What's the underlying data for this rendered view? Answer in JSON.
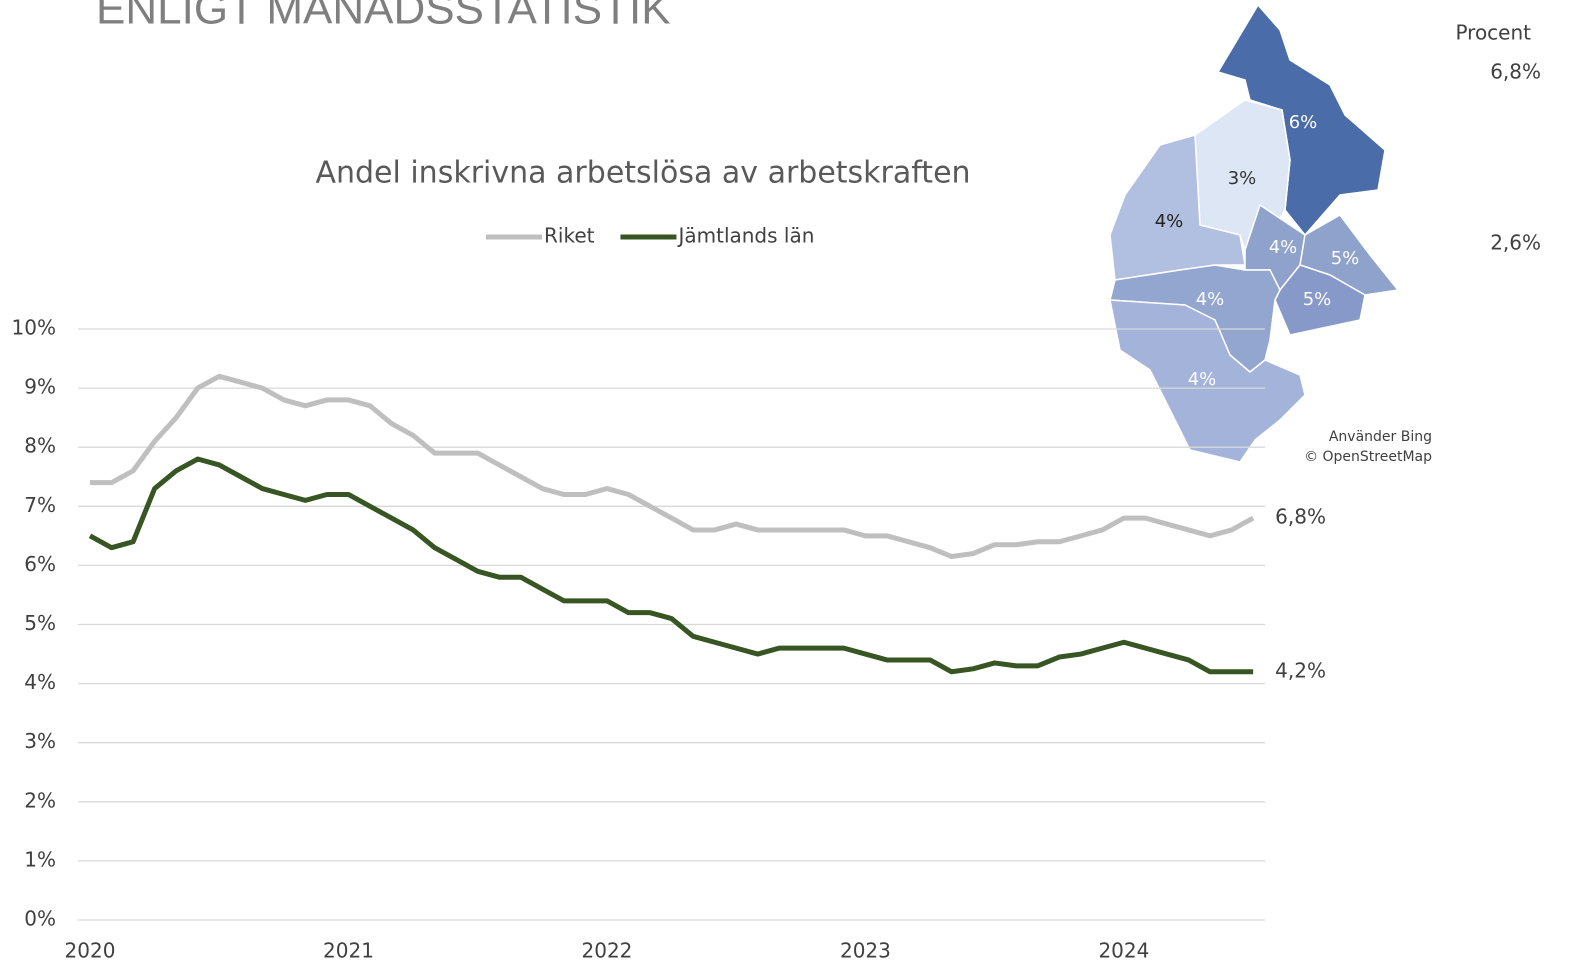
{
  "slide_title": "ENLIGT MÅNADSSTATISTIK",
  "chart_data": {
    "type": "line",
    "title": "Andel inskrivna arbetslösa av arbetskraften",
    "categories": [
      "2020",
      null,
      null,
      null,
      null,
      null,
      null,
      null,
      null,
      null,
      null,
      null,
      "2021",
      null,
      null,
      null,
      null,
      null,
      null,
      null,
      null,
      null,
      null,
      null,
      "2022",
      null,
      null,
      null,
      null,
      null,
      null,
      null,
      null,
      null,
      null,
      null,
      "2023",
      null,
      null,
      null,
      null,
      null,
      null,
      null,
      null,
      null,
      null,
      null,
      "2024",
      null,
      null,
      null,
      null,
      null,
      null
    ],
    "series": [
      {
        "name": "Riket",
        "color": "#bfbfbf",
        "values": [
          7.4,
          7.4,
          7.6,
          8.1,
          8.5,
          9.0,
          9.2,
          9.1,
          9.0,
          8.8,
          8.7,
          8.8,
          8.8,
          8.7,
          8.4,
          8.2,
          7.9,
          7.9,
          7.9,
          7.7,
          7.5,
          7.3,
          7.2,
          7.2,
          7.3,
          7.2,
          7.0,
          6.8,
          6.6,
          6.6,
          6.7,
          6.6,
          6.6,
          6.6,
          6.6,
          6.6,
          6.5,
          6.5,
          6.4,
          6.3,
          6.15,
          6.2,
          6.35,
          6.35,
          6.4,
          6.4,
          6.5,
          6.6,
          6.8,
          6.8,
          6.7,
          6.6,
          6.5,
          6.6,
          6.8
        ],
        "value_labels": [
          null,
          null,
          null,
          null,
          null,
          null,
          null,
          null,
          null,
          null,
          null,
          null,
          null,
          null,
          null,
          null,
          null,
          null,
          null,
          null,
          null,
          null,
          null,
          null,
          null,
          null,
          null,
          null,
          null,
          null,
          null,
          null,
          null,
          null,
          null,
          null,
          null,
          null,
          null,
          null,
          null,
          null,
          null,
          null,
          null,
          null,
          null,
          null,
          null,
          null,
          null,
          null,
          null,
          null,
          "6,8%"
        ]
      },
      {
        "name": "Jämtlands län",
        "color": "#375623",
        "values": [
          6.5,
          6.3,
          6.4,
          7.3,
          7.6,
          7.8,
          7.7,
          7.5,
          7.3,
          7.2,
          7.1,
          7.2,
          7.2,
          7.0,
          6.8,
          6.6,
          6.3,
          6.1,
          5.9,
          5.8,
          5.8,
          5.6,
          5.4,
          5.4,
          5.4,
          5.2,
          5.2,
          5.1,
          4.8,
          4.7,
          4.6,
          4.5,
          4.6,
          4.6,
          4.6,
          4.6,
          4.5,
          4.4,
          4.4,
          4.4,
          4.2,
          4.25,
          4.35,
          4.3,
          4.3,
          4.45,
          4.5,
          4.6,
          4.7,
          4.6,
          4.5,
          4.4,
          4.2,
          4.2,
          4.2
        ],
        "value_labels": [
          null,
          null,
          null,
          null,
          null,
          null,
          null,
          null,
          null,
          null,
          null,
          null,
          null,
          null,
          null,
          null,
          null,
          null,
          null,
          null,
          null,
          null,
          null,
          null,
          null,
          null,
          null,
          null,
          null,
          null,
          null,
          null,
          null,
          null,
          null,
          null,
          null,
          null,
          null,
          null,
          null,
          null,
          null,
          null,
          null,
          null,
          null,
          null,
          null,
          null,
          null,
          null,
          null,
          null,
          "4,2%"
        ]
      }
    ],
    "ylim": [
      0,
      10
    ],
    "yticks": [
      {
        "value": 0,
        "label": "0%"
      },
      {
        "value": 1,
        "label": "1%"
      },
      {
        "value": 2,
        "label": "2%"
      },
      {
        "value": 3,
        "label": "3%"
      },
      {
        "value": 4,
        "label": "4%"
      },
      {
        "value": 5,
        "label": "5%"
      },
      {
        "value": 6,
        "label": "6%"
      },
      {
        "value": 7,
        "label": "7%"
      },
      {
        "value": 8,
        "label": "8%"
      },
      {
        "value": 9,
        "label": "9%"
      },
      {
        "value": 10,
        "label": "10%"
      }
    ],
    "grid": true,
    "legend": "top"
  },
  "map": {
    "regions": [
      "6%",
      "3%",
      "4%",
      "4%",
      "5%",
      "5%",
      "4%",
      "4%"
    ],
    "legend_title": "Procent",
    "legend_max": "6,8%",
    "legend_min": "2,6%",
    "attribution": [
      "Använder Bing",
      "© OpenStreetMap"
    ]
  }
}
